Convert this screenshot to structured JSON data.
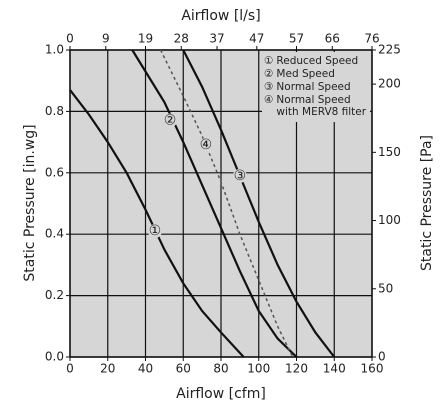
{
  "chart_data": {
    "type": "line",
    "xlabel": "Airflow [cfm]",
    "x2label": "Airflow [l/s]",
    "ylabel": "Static Pressure [in.wg]",
    "y2label": "Static Pressure [Pa]",
    "xlim": [
      0,
      160
    ],
    "xticks": [
      0,
      20,
      40,
      60,
      80,
      100,
      120,
      140,
      160
    ],
    "x2lim": [
      0,
      76
    ],
    "x2ticks": [
      0,
      9,
      19,
      28,
      37,
      47,
      57,
      66,
      76
    ],
    "ylim": [
      0,
      1.0
    ],
    "yticks": [
      {
        "value": 0,
        "label": "0.0"
      },
      0.2,
      0.4,
      0.6,
      0.8,
      {
        "value": 1,
        "label": "1.0"
      }
    ],
    "y2lim": [
      0,
      225
    ],
    "y2ticks": [
      0,
      50,
      100,
      150,
      200,
      225
    ],
    "grid": true,
    "legend": "upper right",
    "series": [
      {
        "name": "Reduced Speed",
        "marker": "①",
        "color": "#111111",
        "dash": false,
        "label_at": [
          45,
          0.41
        ],
        "x": [
          0,
          10,
          20,
          30,
          40,
          50,
          60,
          70,
          80,
          92
        ],
        "values": [
          0.87,
          0.79,
          0.7,
          0.6,
          0.48,
          0.35,
          0.24,
          0.15,
          0.08,
          0
        ]
      },
      {
        "name": "Med Speed",
        "marker": "②",
        "color": "#111111",
        "dash": false,
        "label_at": [
          53,
          0.77
        ],
        "x": [
          33,
          40,
          50,
          60,
          70,
          80,
          90,
          100,
          110,
          120
        ],
        "values": [
          1.0,
          0.93,
          0.83,
          0.7,
          0.56,
          0.42,
          0.28,
          0.15,
          0.06,
          0
        ]
      },
      {
        "name": "Normal Speed",
        "marker": "③",
        "color": "#111111",
        "dash": false,
        "label_at": [
          90,
          0.59
        ],
        "x": [
          60,
          70,
          80,
          90,
          100,
          110,
          120,
          130,
          140
        ],
        "values": [
          1.0,
          0.88,
          0.74,
          0.59,
          0.44,
          0.3,
          0.18,
          0.08,
          0
        ]
      },
      {
        "name": "Normal Speed with MERV8 filter",
        "marker": "④",
        "color": "#555555",
        "dash": true,
        "label_at": [
          72,
          0.69
        ],
        "x": [
          48,
          60,
          70,
          80,
          90,
          100,
          110,
          118
        ],
        "values": [
          1.0,
          0.85,
          0.72,
          0.57,
          0.4,
          0.25,
          0.1,
          0
        ]
      }
    ]
  }
}
